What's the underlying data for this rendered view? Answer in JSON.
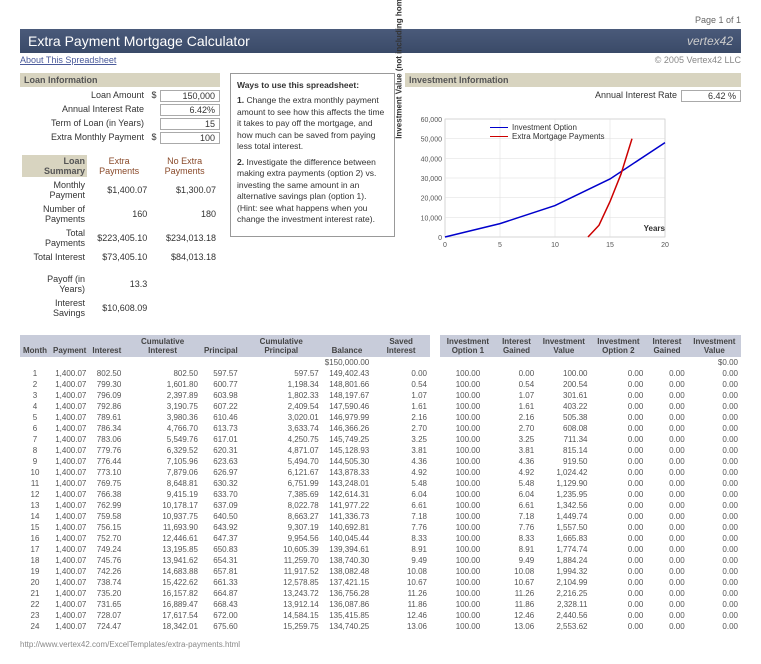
{
  "page_indicator": "Page 1 of 1",
  "title": "Extra Payment Mortgage Calculator",
  "logo_text": "vertex42",
  "about_link": "About This Spreadsheet",
  "copyright": "© 2005 Vertex42 LLC",
  "footer_url": "http://www.vertex42.com/ExcelTemplates/extra-payments.html",
  "loan_info": {
    "header": "Loan Information",
    "rows": [
      {
        "label": "Loan Amount",
        "dollar": "$",
        "value": "150,000"
      },
      {
        "label": "Annual Interest Rate",
        "dollar": "",
        "value": "6.42%"
      },
      {
        "label": "Term of Loan (in Years)",
        "dollar": "",
        "value": "15"
      },
      {
        "label": "Extra Monthly Payment",
        "dollar": "$",
        "value": "100"
      }
    ]
  },
  "loan_summary": {
    "header": "Loan Summary",
    "col1": "Extra Payments",
    "col2": "No Extra Payments",
    "rows": [
      {
        "label": "Monthly Payment",
        "v1": "$1,400.07",
        "v2": "$1,300.07"
      },
      {
        "label": "Number of Payments",
        "v1": "160",
        "v2": "180"
      },
      {
        "label": "Total Payments",
        "v1": "$223,405.10",
        "v2": "$234,013.18"
      },
      {
        "label": "Total Interest",
        "v1": "$73,405.10",
        "v2": "$84,013.18"
      }
    ],
    "extras": [
      {
        "label": "Payoff (in Years)",
        "v1": "13.3",
        "v2": ""
      },
      {
        "label": "Interest Savings",
        "v1": "$10,608.09",
        "v2": ""
      }
    ]
  },
  "ways": {
    "title": "Ways to use this spreadsheet:",
    "p1_bold": "1.",
    "p1": "Change the extra monthly payment amount to see how this affects the time it takes to pay off the mortgage, and how much can be saved from paying less total interest.",
    "p2_bold": "2.",
    "p2": "Investigate the difference between making extra payments (option 2) vs. investing the same amount in an alternative savings plan (option 1). (Hint: see what happens when you change the investment interest rate)."
  },
  "investment": {
    "header": "Investment Information",
    "rate_label": "Annual Interest Rate",
    "rate_value": "6.42 %"
  },
  "chart": {
    "y_label": "Investment Value (not including home equity)",
    "x_label": "Years",
    "legend": [
      {
        "label": "Investment Option",
        "color": "#0000cc"
      },
      {
        "label": "Extra Mortgage Payments",
        "color": "#cc0000"
      }
    ],
    "y_max": 60000,
    "y_ticks": [
      "60,000",
      "50,000",
      "40,000",
      "30,000",
      "20,000",
      "10,000",
      "0"
    ],
    "x_ticks": [
      "0",
      "5",
      "10",
      "15",
      "20"
    ],
    "series1_color": "#0000cc",
    "series2_color": "#cc0000",
    "series1": [
      [
        0,
        0
      ],
      [
        5,
        6800
      ],
      [
        10,
        16000
      ],
      [
        15,
        29500
      ],
      [
        20,
        48000
      ]
    ],
    "series2": [
      [
        13,
        0
      ],
      [
        14,
        6000
      ],
      [
        15,
        18000
      ],
      [
        16,
        32000
      ],
      [
        17,
        50000
      ]
    ]
  },
  "amort_headers": [
    "Month",
    "Payment",
    "Interest",
    "Cumulative Interest",
    "Principal",
    "Cumulative Principal",
    "Balance",
    "Saved Interest"
  ],
  "amort_initial_balance": "$150,000.00",
  "amort_rows": [
    [
      "1",
      "1,400.07",
      "802.50",
      "802.50",
      "597.57",
      "597.57",
      "149,402.43",
      "0.00"
    ],
    [
      "2",
      "1,400.07",
      "799.30",
      "1,601.80",
      "600.77",
      "1,198.34",
      "148,801.66",
      "0.54"
    ],
    [
      "3",
      "1,400.07",
      "796.09",
      "2,397.89",
      "603.98",
      "1,802.33",
      "148,197.67",
      "1.07"
    ],
    [
      "4",
      "1,400.07",
      "792.86",
      "3,190.75",
      "607.22",
      "2,409.54",
      "147,590.46",
      "1.61"
    ],
    [
      "5",
      "1,400.07",
      "789.61",
      "3,980.36",
      "610.46",
      "3,020.01",
      "146,979.99",
      "2.16"
    ],
    [
      "6",
      "1,400.07",
      "786.34",
      "4,766.70",
      "613.73",
      "3,633.74",
      "146,366.26",
      "2.70"
    ],
    [
      "7",
      "1,400.07",
      "783.06",
      "5,549.76",
      "617.01",
      "4,250.75",
      "145,749.25",
      "3.25"
    ],
    [
      "8",
      "1,400.07",
      "779.76",
      "6,329.52",
      "620.31",
      "4,871.07",
      "145,128.93",
      "3.81"
    ],
    [
      "9",
      "1,400.07",
      "776.44",
      "7,105.96",
      "623.63",
      "5,494.70",
      "144,505.30",
      "4.36"
    ],
    [
      "10",
      "1,400.07",
      "773.10",
      "7,879.06",
      "626.97",
      "6,121.67",
      "143,878.33",
      "4.92"
    ],
    [
      "11",
      "1,400.07",
      "769.75",
      "8,648.81",
      "630.32",
      "6,751.99",
      "143,248.01",
      "5.48"
    ],
    [
      "12",
      "1,400.07",
      "766.38",
      "9,415.19",
      "633.70",
      "7,385.69",
      "142,614.31",
      "6.04"
    ],
    [
      "13",
      "1,400.07",
      "762.99",
      "10,178.17",
      "637.09",
      "8,022.78",
      "141,977.22",
      "6.61"
    ],
    [
      "14",
      "1,400.07",
      "759.58",
      "10,937.75",
      "640.50",
      "8,663.27",
      "141,336.73",
      "7.18"
    ],
    [
      "15",
      "1,400.07",
      "756.15",
      "11,693.90",
      "643.92",
      "9,307.19",
      "140,692.81",
      "7.76"
    ],
    [
      "16",
      "1,400.07",
      "752.70",
      "12,446.61",
      "647.37",
      "9,954.56",
      "140,045.44",
      "8.33"
    ],
    [
      "17",
      "1,400.07",
      "749.24",
      "13,195.85",
      "650.83",
      "10,605.39",
      "139,394.61",
      "8.91"
    ],
    [
      "18",
      "1,400.07",
      "745.76",
      "13,941.62",
      "654.31",
      "11,259.70",
      "138,740.30",
      "9.49"
    ],
    [
      "19",
      "1,400.07",
      "742.26",
      "14,683.88",
      "657.81",
      "11,917.52",
      "138,082.48",
      "10.08"
    ],
    [
      "20",
      "1,400.07",
      "738.74",
      "15,422.62",
      "661.33",
      "12,578.85",
      "137,421.15",
      "10.67"
    ],
    [
      "21",
      "1,400.07",
      "735.20",
      "16,157.82",
      "664.87",
      "13,243.72",
      "136,756.28",
      "11.26"
    ],
    [
      "22",
      "1,400.07",
      "731.65",
      "16,889.47",
      "668.43",
      "13,912.14",
      "136,087.86",
      "11.86"
    ],
    [
      "23",
      "1,400.07",
      "728.07",
      "17,617.54",
      "672.00",
      "14,584.15",
      "135,415.85",
      "12.46"
    ],
    [
      "24",
      "1,400.07",
      "724.47",
      "18,342.01",
      "675.60",
      "15,259.75",
      "134,740.25",
      "13.06"
    ]
  ],
  "invest_headers": [
    "Investment Option 1",
    "Interest Gained",
    "Investment Value",
    "Investment Option 2",
    "Interest Gained",
    "Investment Value"
  ],
  "invest_initial": "$0.00",
  "invest_rows": [
    [
      "100.00",
      "0.00",
      "100.00",
      "0.00",
      "0.00",
      "0.00"
    ],
    [
      "100.00",
      "0.54",
      "200.54",
      "0.00",
      "0.00",
      "0.00"
    ],
    [
      "100.00",
      "1.07",
      "301.61",
      "0.00",
      "0.00",
      "0.00"
    ],
    [
      "100.00",
      "1.61",
      "403.22",
      "0.00",
      "0.00",
      "0.00"
    ],
    [
      "100.00",
      "2.16",
      "505.38",
      "0.00",
      "0.00",
      "0.00"
    ],
    [
      "100.00",
      "2.70",
      "608.08",
      "0.00",
      "0.00",
      "0.00"
    ],
    [
      "100.00",
      "3.25",
      "711.34",
      "0.00",
      "0.00",
      "0.00"
    ],
    [
      "100.00",
      "3.81",
      "815.14",
      "0.00",
      "0.00",
      "0.00"
    ],
    [
      "100.00",
      "4.36",
      "919.50",
      "0.00",
      "0.00",
      "0.00"
    ],
    [
      "100.00",
      "4.92",
      "1,024.42",
      "0.00",
      "0.00",
      "0.00"
    ],
    [
      "100.00",
      "5.48",
      "1,129.90",
      "0.00",
      "0.00",
      "0.00"
    ],
    [
      "100.00",
      "6.04",
      "1,235.95",
      "0.00",
      "0.00",
      "0.00"
    ],
    [
      "100.00",
      "6.61",
      "1,342.56",
      "0.00",
      "0.00",
      "0.00"
    ],
    [
      "100.00",
      "7.18",
      "1,449.74",
      "0.00",
      "0.00",
      "0.00"
    ],
    [
      "100.00",
      "7.76",
      "1,557.50",
      "0.00",
      "0.00",
      "0.00"
    ],
    [
      "100.00",
      "8.33",
      "1,665.83",
      "0.00",
      "0.00",
      "0.00"
    ],
    [
      "100.00",
      "8.91",
      "1,774.74",
      "0.00",
      "0.00",
      "0.00"
    ],
    [
      "100.00",
      "9.49",
      "1,884.24",
      "0.00",
      "0.00",
      "0.00"
    ],
    [
      "100.00",
      "10.08",
      "1,994.32",
      "0.00",
      "0.00",
      "0.00"
    ],
    [
      "100.00",
      "10.67",
      "2,104.99",
      "0.00",
      "0.00",
      "0.00"
    ],
    [
      "100.00",
      "11.26",
      "2,216.25",
      "0.00",
      "0.00",
      "0.00"
    ],
    [
      "100.00",
      "11.86",
      "2,328.11",
      "0.00",
      "0.00",
      "0.00"
    ],
    [
      "100.00",
      "12.46",
      "2,440.56",
      "0.00",
      "0.00",
      "0.00"
    ],
    [
      "100.00",
      "13.06",
      "2,553.62",
      "0.00",
      "0.00",
      "0.00"
    ]
  ]
}
